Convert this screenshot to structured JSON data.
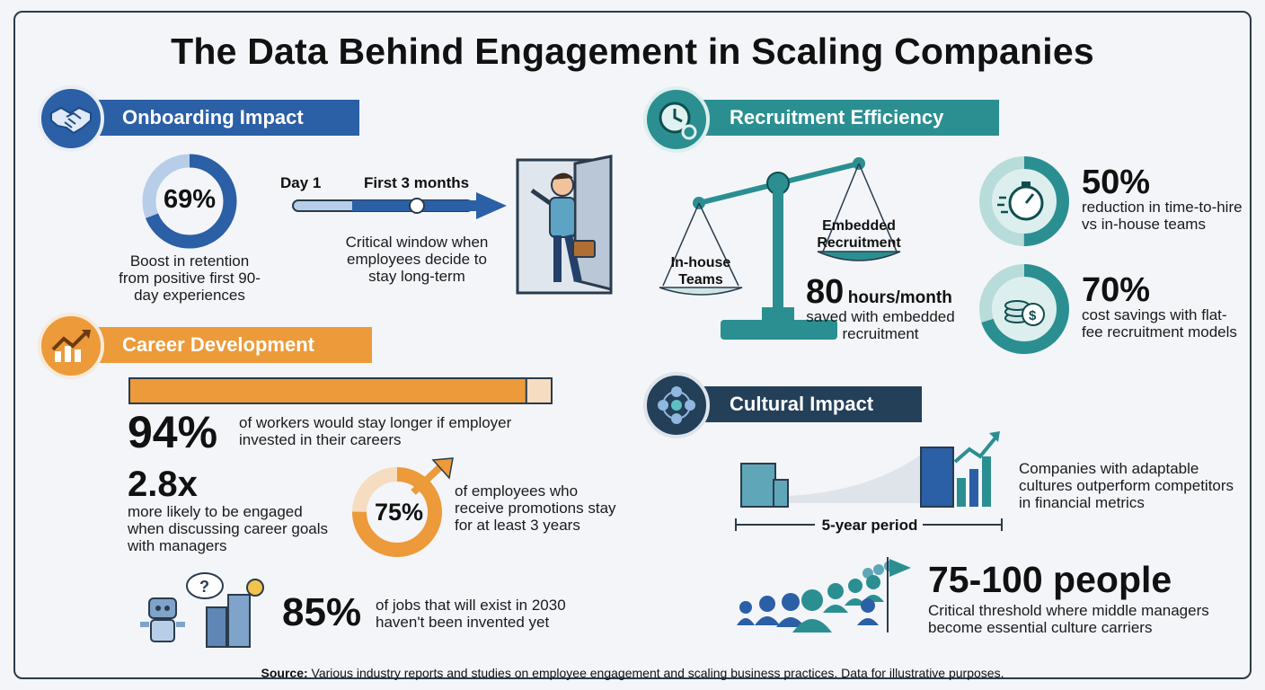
{
  "title": "The Data Behind Engagement in Scaling Companies",
  "colors": {
    "blue": "#2b5fa6",
    "orange": "#ec9a3a",
    "teal": "#2b8f91",
    "navy": "#243f58"
  },
  "onboarding": {
    "heading": "Onboarding Impact",
    "icon": "handshake-icon",
    "stat": "69%",
    "stat_value_percent": 69,
    "stat_desc": "Boost in retention from positive first 90-day experiences",
    "timeline_start": "Day 1",
    "timeline_mid": "First 3 months",
    "timeline_desc": "Critical window when employees decide to stay long-term"
  },
  "career": {
    "heading": "Career Development",
    "icon": "growth-chart-icon",
    "bar_value_percent": 94,
    "stat1": "94%",
    "stat1_desc": "of workers would stay longer if employer invested in their careers",
    "stat2": "2.8x",
    "stat2_desc": "more likely to be engaged when discussing career goals with managers",
    "stat3": "75%",
    "stat3_value_percent": 75,
    "stat3_desc": "of employees who receive promotions stay for at least 3 years",
    "stat4": "85%",
    "stat4_desc": "of jobs that will exist in 2030 haven't been invented yet",
    "bubble_text": "?"
  },
  "recruitment": {
    "heading": "Recruitment Efficiency",
    "icon": "clock-gear-icon",
    "scale_left": "In-house Teams",
    "scale_right": "Embedded Recruitment",
    "hours_num": "80",
    "hours_unit": "hours/month",
    "hours_desc": "saved with embedded recruitment",
    "stat1": "50%",
    "stat1_value_percent": 50,
    "stat1_desc": "reduction in time-to-hire vs in-house teams",
    "stat2": "70%",
    "stat2_value_percent": 70,
    "stat2_desc": "cost savings with flat-fee recruitment models"
  },
  "culture": {
    "heading": "Cultural Impact",
    "icon": "network-people-icon",
    "period": "5-year period",
    "growth_desc": "Companies with adaptable cultures outperform competitors in financial metrics",
    "people_stat": "75-100 people",
    "people_desc": "Critical threshold where middle managers become essential culture carriers"
  },
  "source": {
    "label": "Source:",
    "text": "Various industry reports and studies on employee engagement and scaling business practices. Data for illustrative purposes."
  }
}
